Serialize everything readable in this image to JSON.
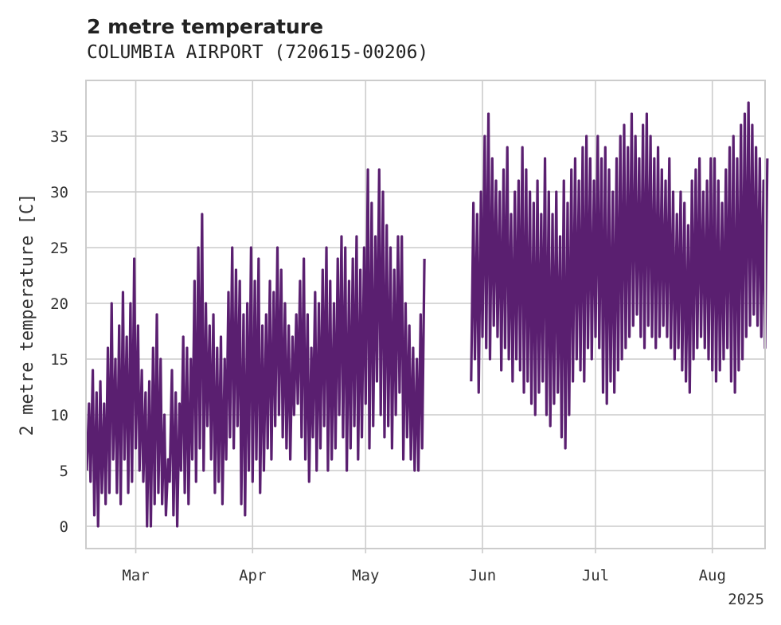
{
  "chart_data": {
    "type": "line",
    "title": "2 metre temperature",
    "subtitle": "COLUMBIA AIRPORT (720615-00206)",
    "ylabel": "2 metre temperature [C]",
    "xlabel": "",
    "xlim": [
      "2025-02-16",
      "2025-08-15"
    ],
    "ylim": [
      -2,
      40
    ],
    "grid": true,
    "x_ticks": [
      {
        "date": "2025-03-01",
        "label": "Mar"
      },
      {
        "date": "2025-04-01",
        "label": "Apr"
      },
      {
        "date": "2025-05-01",
        "label": "May"
      },
      {
        "date": "2025-06-01",
        "label": "Jun"
      },
      {
        "date": "2025-07-01",
        "label": "Jul"
      },
      {
        "date": "2025-08-01",
        "label": "Aug"
      }
    ],
    "x_year_label": "2025",
    "y_ticks": [
      0,
      5,
      10,
      15,
      20,
      25,
      30,
      35
    ],
    "series": [
      {
        "color": "#5a1f70",
        "segments": [
          {
            "x": [
              "2025-02-16",
              "2025-02-17",
              "2025-02-18",
              "2025-02-19",
              "2025-02-20",
              "2025-02-21",
              "2025-02-22",
              "2025-02-23",
              "2025-02-24",
              "2025-02-25",
              "2025-02-26",
              "2025-02-27",
              "2025-02-28",
              "2025-03-01",
              "2025-03-02",
              "2025-03-03",
              "2025-03-04",
              "2025-03-05",
              "2025-03-06",
              "2025-03-07",
              "2025-03-08",
              "2025-03-09",
              "2025-03-10",
              "2025-03-11",
              "2025-03-12",
              "2025-03-13",
              "2025-03-14",
              "2025-03-15",
              "2025-03-16",
              "2025-03-17",
              "2025-03-18",
              "2025-03-19",
              "2025-03-20",
              "2025-03-21",
              "2025-03-22",
              "2025-03-23",
              "2025-03-24",
              "2025-03-25",
              "2025-03-26",
              "2025-03-27",
              "2025-03-28",
              "2025-03-29",
              "2025-03-30",
              "2025-03-31",
              "2025-04-01",
              "2025-04-02",
              "2025-04-03",
              "2025-04-04",
              "2025-04-05",
              "2025-04-06",
              "2025-04-07",
              "2025-04-08",
              "2025-04-09",
              "2025-04-10",
              "2025-04-11",
              "2025-04-12",
              "2025-04-13",
              "2025-04-14",
              "2025-04-15",
              "2025-04-16",
              "2025-04-17",
              "2025-04-18",
              "2025-04-19",
              "2025-04-20",
              "2025-04-21",
              "2025-04-22",
              "2025-04-23",
              "2025-04-24",
              "2025-04-25",
              "2025-04-26",
              "2025-04-27",
              "2025-04-28",
              "2025-04-29",
              "2025-04-30",
              "2025-05-01",
              "2025-05-02",
              "2025-05-03",
              "2025-05-04",
              "2025-05-05",
              "2025-05-06",
              "2025-05-07",
              "2025-05-08",
              "2025-05-09",
              "2025-05-10",
              "2025-05-11",
              "2025-05-12",
              "2025-05-13",
              "2025-05-14",
              "2025-05-15",
              "2025-05-16"
            ],
            "min": [
              5,
              4,
              1,
              0,
              3,
              2,
              3,
              6,
              3,
              2,
              6,
              3,
              4,
              7,
              5,
              4,
              0,
              0,
              2,
              3,
              2,
              1,
              4,
              1,
              0,
              5,
              3,
              2,
              6,
              4,
              7,
              5,
              9,
              6,
              3,
              4,
              2,
              6,
              8,
              7,
              9,
              2,
              1,
              5,
              4,
              6,
              3,
              5,
              7,
              6,
              9,
              10,
              8,
              7,
              6,
              10,
              11,
              8,
              6,
              4,
              8,
              5,
              7,
              9,
              5,
              6,
              7,
              10,
              8,
              5,
              7,
              9,
              6,
              8,
              11,
              7,
              9,
              13,
              10,
              8,
              9,
              7,
              10,
              12,
              6,
              8,
              6,
              5,
              5,
              7
            ],
            "max": [
              11,
              14,
              12,
              13,
              11,
              16,
              20,
              15,
              18,
              21,
              17,
              20,
              24,
              18,
              14,
              12,
              13,
              16,
              19,
              15,
              10,
              6,
              14,
              12,
              11,
              17,
              16,
              15,
              22,
              25,
              28,
              20,
              18,
              19,
              16,
              17,
              15,
              21,
              25,
              23,
              22,
              19,
              20,
              25,
              22,
              24,
              18,
              19,
              22,
              21,
              25,
              23,
              20,
              18,
              17,
              19,
              22,
              24,
              19,
              16,
              21,
              20,
              23,
              25,
              22,
              20,
              24,
              26,
              25,
              22,
              24,
              26,
              23,
              25,
              32,
              29,
              26,
              32,
              30,
              27,
              25,
              23,
              26,
              26,
              20,
              18,
              16,
              15,
              19,
              24
            ]
          },
          {
            "x": [
              "2025-05-29",
              "2025-05-30",
              "2025-05-31",
              "2025-06-01",
              "2025-06-02",
              "2025-06-03",
              "2025-06-04",
              "2025-06-05",
              "2025-06-06",
              "2025-06-07",
              "2025-06-08",
              "2025-06-09",
              "2025-06-10",
              "2025-06-11",
              "2025-06-12",
              "2025-06-13",
              "2025-06-14",
              "2025-06-15",
              "2025-06-16",
              "2025-06-17",
              "2025-06-18",
              "2025-06-19",
              "2025-06-20",
              "2025-06-21",
              "2025-06-22",
              "2025-06-23",
              "2025-06-24",
              "2025-06-25",
              "2025-06-26",
              "2025-06-27",
              "2025-06-28",
              "2025-06-29",
              "2025-06-30",
              "2025-07-01",
              "2025-07-02",
              "2025-07-03",
              "2025-07-04",
              "2025-07-05",
              "2025-07-06",
              "2025-07-07",
              "2025-07-08",
              "2025-07-09",
              "2025-07-10",
              "2025-07-11",
              "2025-07-12",
              "2025-07-13",
              "2025-07-14",
              "2025-07-15",
              "2025-07-16",
              "2025-07-17",
              "2025-07-18",
              "2025-07-19",
              "2025-07-20",
              "2025-07-21",
              "2025-07-22",
              "2025-07-23",
              "2025-07-24",
              "2025-07-25",
              "2025-07-26",
              "2025-07-27",
              "2025-07-28",
              "2025-07-29",
              "2025-07-30",
              "2025-07-31",
              "2025-08-01",
              "2025-08-02",
              "2025-08-03",
              "2025-08-04",
              "2025-08-05",
              "2025-08-06",
              "2025-08-07",
              "2025-08-08",
              "2025-08-09",
              "2025-08-10",
              "2025-08-11",
              "2025-08-12",
              "2025-08-13",
              "2025-08-14",
              "2025-08-15"
            ],
            "min": [
              13,
              15,
              12,
              17,
              16,
              15,
              18,
              17,
              14,
              16,
              15,
              13,
              15,
              14,
              12,
              13,
              11,
              10,
              12,
              13,
              10,
              9,
              11,
              12,
              8,
              7,
              10,
              13,
              15,
              14,
              13,
              16,
              15,
              17,
              16,
              12,
              11,
              13,
              12,
              14,
              15,
              16,
              17,
              18,
              19,
              17,
              16,
              18,
              17,
              16,
              17,
              18,
              17,
              16,
              15,
              16,
              14,
              13,
              12,
              15,
              16,
              17,
              16,
              15,
              14,
              13,
              14,
              15,
              16,
              13,
              12,
              14,
              15,
              17,
              18,
              19,
              18,
              17,
              16
            ],
            "max": [
              29,
              28,
              30,
              35,
              37,
              33,
              31,
              30,
              32,
              34,
              28,
              30,
              31,
              34,
              32,
              30,
              29,
              31,
              28,
              33,
              30,
              28,
              30,
              26,
              31,
              29,
              32,
              33,
              31,
              34,
              35,
              33,
              31,
              35,
              33,
              34,
              32,
              30,
              33,
              35,
              36,
              34,
              37,
              35,
              33,
              36,
              37,
              35,
              33,
              34,
              32,
              31,
              33,
              30,
              28,
              30,
              29,
              27,
              31,
              32,
              33,
              30,
              31,
              33,
              33,
              31,
              29,
              32,
              34,
              35,
              33,
              36,
              37,
              38,
              36,
              34,
              33,
              31,
              33
            ]
          }
        ]
      }
    ]
  }
}
